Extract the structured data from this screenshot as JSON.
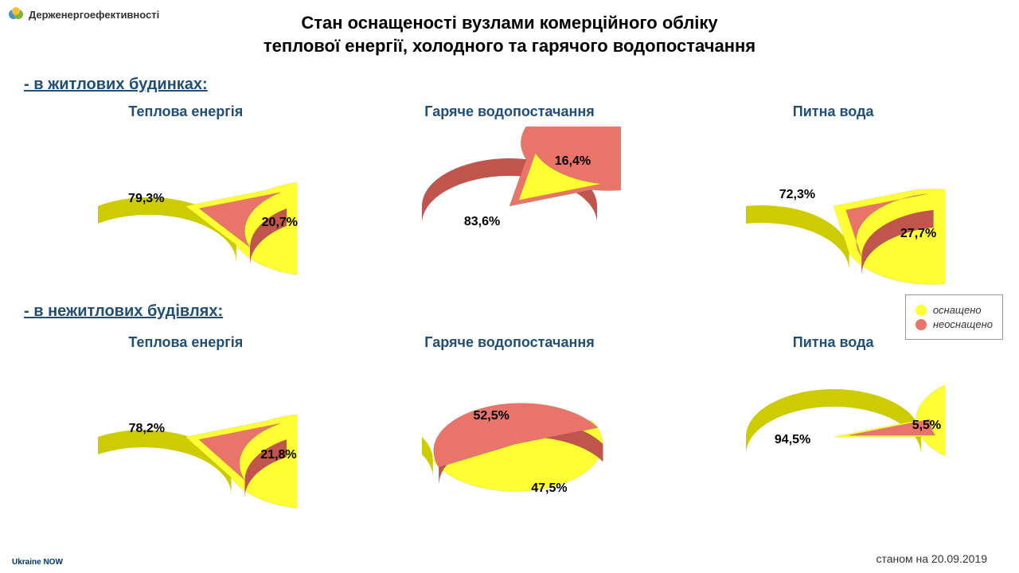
{
  "header": {
    "org_name": "Держенергоефективності"
  },
  "title_line1": "Стан оснащеності вузлами комерційного обліку",
  "title_line2": "теплової енергії, холодного та гарячого водопостачання",
  "sections": {
    "residential": "- в житлових будинках:",
    "nonresidential": "- в нежитлових будівлях:"
  },
  "legend": {
    "equipped": "оснащено",
    "not_equipped": "неоснащено"
  },
  "colors": {
    "equipped": "#ffff33",
    "equipped_dark": "#cccc00",
    "not_equipped": "#e8746a",
    "not_equipped_dark": "#c0554d",
    "title_color": "#1f4e79",
    "background": "#ffffff"
  },
  "chart_style": {
    "type": "pie_3d",
    "label_fontsize": 16,
    "title_fontsize": 18,
    "depth_ratio": 0.15,
    "tilt": 0.55
  },
  "charts": {
    "row1": [
      {
        "title": "Теплова енергія",
        "slices": [
          {
            "label": "79,3%",
            "value": 79.3,
            "color": "#ffff33",
            "dark": "#cccc00",
            "explode": false
          },
          {
            "label": "20,7%",
            "value": 20.7,
            "color": "#e8746a",
            "dark": "#c0554d",
            "explode": true
          }
        ]
      },
      {
        "title": "Гаряче водопостачання",
        "slices": [
          {
            "label": "16,4%",
            "value": 16.4,
            "color": "#ffff33",
            "dark": "#cccc00",
            "explode": true
          },
          {
            "label": "83,6%",
            "value": 83.6,
            "color": "#e8746a",
            "dark": "#c0554d",
            "explode": false
          }
        ]
      },
      {
        "title": "Питна вода",
        "slices": [
          {
            "label": "72,3%",
            "value": 72.3,
            "color": "#ffff33",
            "dark": "#cccc00",
            "explode": false
          },
          {
            "label": "27,7%",
            "value": 27.7,
            "color": "#e8746a",
            "dark": "#c0554d",
            "explode": true
          }
        ]
      }
    ],
    "row2": [
      {
        "title": "Теплова енергія",
        "slices": [
          {
            "label": "78,2%",
            "value": 78.2,
            "color": "#ffff33",
            "dark": "#cccc00",
            "explode": false
          },
          {
            "label": "21,8%",
            "value": 21.8,
            "color": "#e8746a",
            "dark": "#c0554d",
            "explode": true
          }
        ]
      },
      {
        "title": "Гаряче водопостачання",
        "slices": [
          {
            "label": "52,5%",
            "value": 52.5,
            "color": "#ffff33",
            "dark": "#cccc00",
            "explode": false
          },
          {
            "label": "47,5%",
            "value": 47.5,
            "color": "#e8746a",
            "dark": "#c0554d",
            "explode": true
          }
        ]
      },
      {
        "title": "Питна вода",
        "slices": [
          {
            "label": "94,5%",
            "value": 94.5,
            "color": "#ffff33",
            "dark": "#cccc00",
            "explode": false
          },
          {
            "label": "5,5%",
            "value": 5.5,
            "color": "#e8746a",
            "dark": "#c0554d",
            "explode": true
          }
        ]
      }
    ]
  },
  "footer": {
    "date_label": "станом на  20.09.2019",
    "brand": "Ukraine NOW"
  }
}
